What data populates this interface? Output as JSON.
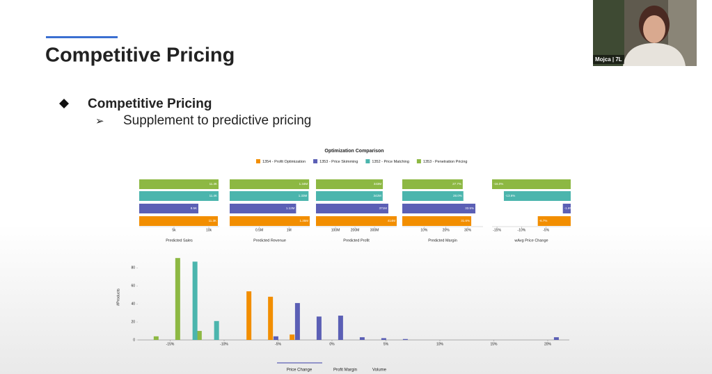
{
  "header": {
    "title": "Competitive Pricing"
  },
  "bullets": [
    "Competitive Pricing",
    "Supplement to predictive pricing"
  ],
  "comparison": {
    "title": "Optimization Comparison",
    "series": [
      {
        "name": "1354 - Profit Optimization",
        "color": "#f28e00"
      },
      {
        "name": "1353 - Price Skimming",
        "color": "#5b5fb5"
      },
      {
        "name": "1352 - Price Matching",
        "color": "#4bb5ad"
      },
      {
        "name": "1353 - Penetration Pricing",
        "color": "#8db843"
      }
    ],
    "panels": [
      {
        "label": "Predicted Sales",
        "xlim": [
          0,
          11500
        ],
        "xticks": [
          {
            "value": 5000,
            "label": "5k"
          },
          {
            "value": 10000,
            "label": "10k"
          }
        ],
        "values": [
          11300,
          8500,
          11400,
          11400
        ],
        "value_labels": [
          "11.3K",
          "8.5K",
          "11.4K",
          "11.4K"
        ]
      },
      {
        "label": "Predicted Revenue",
        "xlim": [
          0,
          1350000
        ],
        "xticks": [
          {
            "value": 500000,
            "label": "0.5M"
          },
          {
            "value": 1000000,
            "label": "1M"
          }
        ],
        "values": [
          1350000,
          1120000,
          1330000,
          1340000
        ],
        "value_labels": [
          "1.35M",
          "1.12M",
          "1.33M",
          "1.34M"
        ]
      },
      {
        "label": "Predicted Profit",
        "xlim": [
          0,
          414
        ],
        "xticks": [
          {
            "value": 100,
            "label": "100M"
          },
          {
            "value": 200,
            "label": "200M"
          },
          {
            "value": 300,
            "label": "300M"
          }
        ],
        "values": [
          414,
          371,
          342,
          343
        ],
        "value_labels": [
          "414M",
          "371M",
          "342M",
          "343M"
        ]
      },
      {
        "label": "Predicted Margin",
        "xlim": [
          0,
          37
        ],
        "xticks": [
          {
            "value": 10,
            "label": "10%"
          },
          {
            "value": 20,
            "label": "20%"
          },
          {
            "value": 30,
            "label": "30%"
          }
        ],
        "values": [
          31.6,
          33.5,
          28,
          27.7
        ],
        "value_labels": [
          "31.6%",
          "33.5%",
          "28.0%",
          "27.7%"
        ]
      },
      {
        "label": "wAvg Price Change",
        "xlim": [
          -16,
          0
        ],
        "xticks": [
          {
            "value": -15,
            "label": "-15%"
          },
          {
            "value": -10,
            "label": "-10%"
          },
          {
            "value": -5,
            "label": "-5%"
          }
        ],
        "values": [
          -6.7,
          -1.6,
          -13.6,
          -16
        ],
        "value_labels": [
          "-6.7%",
          "-1.6%",
          "-13.6%",
          "-16.0%"
        ]
      }
    ]
  },
  "histogram": {
    "type": "bar",
    "y_label": "#Products",
    "xlim": [
      -18,
      22
    ],
    "ylim": [
      0,
      95
    ],
    "xticks": [
      {
        "value": -15,
        "label": "-15%"
      },
      {
        "value": -10,
        "label": "-10%"
      },
      {
        "value": -5,
        "label": "-5%"
      },
      {
        "value": 0,
        "label": "0%"
      },
      {
        "value": 5,
        "label": "5%"
      },
      {
        "value": 10,
        "label": "10%"
      },
      {
        "value": 15,
        "label": "15%"
      },
      {
        "value": 20,
        "label": "20%"
      }
    ],
    "yticks": [
      0,
      20,
      40,
      60,
      80
    ],
    "series": [
      {
        "color": "#8db843",
        "x": [
          -16.3,
          -14.3,
          -12.3
        ],
        "values": [
          4,
          91,
          10
        ]
      },
      {
        "color": "#4bb5ad",
        "x": [
          -12.7,
          -10.7
        ],
        "values": [
          87,
          21
        ]
      },
      {
        "color": "#f28e00",
        "x": [
          -7.7,
          -5.7,
          -3.7
        ],
        "values": [
          54,
          48,
          6
        ]
      },
      {
        "color": "#5b5fb5",
        "x": [
          -5.2,
          -3.2,
          -1.2,
          0.8,
          2.8,
          4.8,
          6.8,
          20.8
        ],
        "values": [
          4,
          41,
          26,
          27,
          3,
          2,
          1,
          3
        ]
      }
    ],
    "tabs": [
      "Price Change",
      "Profit Margin",
      "Volume"
    ]
  },
  "video": {
    "name": "Mojca | 7L"
  }
}
